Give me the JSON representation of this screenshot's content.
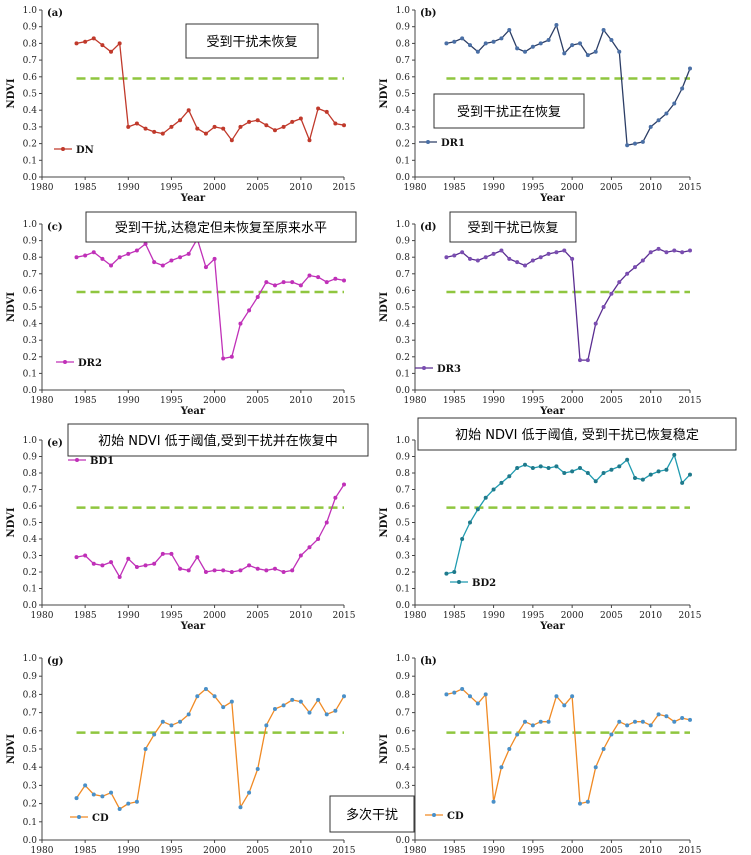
{
  "colors": {
    "threshold": "#8fc63f",
    "axis": "#333333",
    "annotation_border": "#333333"
  },
  "chart_data": [
    {
      "id": "a",
      "panel_label": "(a)",
      "type": "line",
      "xlabel": "Year",
      "ylabel": "NDVI",
      "xlim": [
        1980,
        2015
      ],
      "ylim": [
        0,
        1.0
      ],
      "xticks": [
        "1980",
        "1985",
        "1990",
        "1995",
        "2000",
        "2005",
        "2010",
        "2015"
      ],
      "yticks": [
        "0.0",
        "0.1",
        "0.2",
        "0.3",
        "0.4",
        "0.5",
        "0.6",
        "0.7",
        "0.8",
        "0.9",
        "1.0"
      ],
      "threshold": 0.59,
      "legend_position": "bottom-left",
      "series": [
        {
          "name": "DN",
          "color": "#c0392b",
          "marker_color": "#c0392b",
          "x": [
            1984,
            1985,
            1986,
            1987,
            1988,
            1989,
            1990,
            1991,
            1992,
            1993,
            1994,
            1995,
            1996,
            1997,
            1998,
            1999,
            2000,
            2001,
            2002,
            2003,
            2004,
            2005,
            2006,
            2007,
            2008,
            2009,
            2010,
            2011,
            2012,
            2013,
            2014,
            2015
          ],
          "y": [
            0.8,
            0.81,
            0.83,
            0.79,
            0.75,
            0.8,
            0.3,
            0.32,
            0.29,
            0.27,
            0.26,
            0.3,
            0.34,
            0.4,
            0.29,
            0.26,
            0.3,
            0.29,
            0.22,
            0.3,
            0.33,
            0.34,
            0.31,
            0.28,
            0.3,
            0.33,
            0.35,
            0.22,
            0.41,
            0.39,
            0.32,
            0.31
          ]
        }
      ],
      "annotation": {
        "text": "受到干扰未恢复",
        "position": "top-right"
      }
    },
    {
      "id": "b",
      "panel_label": "(b)",
      "type": "line",
      "xlabel": "Year",
      "ylabel": "NDVI",
      "xlim": [
        1980,
        2015
      ],
      "ylim": [
        0,
        1.0
      ],
      "xticks": [
        "1980",
        "1985",
        "1990",
        "1995",
        "2000",
        "2005",
        "2010",
        "2015"
      ],
      "yticks": [
        "0.0",
        "0.1",
        "0.2",
        "0.3",
        "0.4",
        "0.5",
        "0.6",
        "0.7",
        "0.8",
        "0.9",
        "1.0"
      ],
      "threshold": 0.59,
      "legend_position": "bottom-left",
      "series": [
        {
          "name": "DR1",
          "color": "#2c3e66",
          "marker_color": "#4a6fa5",
          "x": [
            1984,
            1985,
            1986,
            1987,
            1988,
            1989,
            1990,
            1991,
            1992,
            1993,
            1994,
            1995,
            1996,
            1997,
            1998,
            1999,
            2000,
            2001,
            2002,
            2003,
            2004,
            2005,
            2006,
            2007,
            2008,
            2009,
            2010,
            2011,
            2012,
            2013,
            2014,
            2015
          ],
          "y": [
            0.8,
            0.81,
            0.83,
            0.79,
            0.75,
            0.8,
            0.81,
            0.83,
            0.88,
            0.77,
            0.75,
            0.78,
            0.8,
            0.82,
            0.91,
            0.74,
            0.79,
            0.8,
            0.73,
            0.75,
            0.88,
            0.82,
            0.75,
            0.19,
            0.2,
            0.21,
            0.3,
            0.34,
            0.38,
            0.44,
            0.53,
            0.65
          ]
        }
      ],
      "annotation": {
        "text": "受到干扰正在恢复",
        "position": "middle"
      }
    },
    {
      "id": "c",
      "panel_label": "(c)",
      "type": "line",
      "xlabel": "Year",
      "ylabel": "NDVI",
      "xlim": [
        1980,
        2015
      ],
      "ylim": [
        0,
        1.0
      ],
      "xticks": [
        "1980",
        "1985",
        "1990",
        "1995",
        "2000",
        "2005",
        "2010",
        "2015"
      ],
      "yticks": [
        "0.0",
        "0.1",
        "0.2",
        "0.3",
        "0.4",
        "0.5",
        "0.6",
        "0.7",
        "0.8",
        "0.9",
        "1.0"
      ],
      "threshold": 0.59,
      "legend_position": "bottom-left",
      "series": [
        {
          "name": "DR2",
          "color": "#c030b8",
          "marker_color": "#c030b8",
          "x": [
            1984,
            1985,
            1986,
            1987,
            1988,
            1989,
            1990,
            1991,
            1992,
            1993,
            1994,
            1995,
            1996,
            1997,
            1998,
            1999,
            2000,
            2001,
            2002,
            2003,
            2004,
            2005,
            2006,
            2007,
            2008,
            2009,
            2010,
            2011,
            2012,
            2013,
            2014,
            2015
          ],
          "y": [
            0.8,
            0.81,
            0.83,
            0.79,
            0.75,
            0.8,
            0.82,
            0.84,
            0.88,
            0.77,
            0.75,
            0.78,
            0.8,
            0.82,
            0.91,
            0.74,
            0.79,
            0.19,
            0.2,
            0.4,
            0.48,
            0.56,
            0.65,
            0.63,
            0.65,
            0.65,
            0.63,
            0.69,
            0.68,
            0.65,
            0.67,
            0.66
          ]
        }
      ],
      "annotation": {
        "text": "受到干扰,达稳定但未恢复至原来水平",
        "position": "top"
      }
    },
    {
      "id": "d",
      "panel_label": "(d)",
      "type": "line",
      "xlabel": "Year",
      "ylabel": "NDVI",
      "xlim": [
        1980,
        2015
      ],
      "ylim": [
        0,
        1.0
      ],
      "xticks": [
        "1980",
        "1985",
        "1990",
        "1995",
        "2000",
        "2005",
        "2010",
        "2015"
      ],
      "yticks": [
        "0.0",
        "0.1",
        "0.2",
        "0.3",
        "0.4",
        "0.5",
        "0.6",
        "0.7",
        "0.8",
        "0.9",
        "1.0"
      ],
      "threshold": 0.59,
      "legend_position": "bottom-left",
      "series": [
        {
          "name": "DR3",
          "color": "#5a2d91",
          "marker_color": "#7a4db1",
          "x": [
            1984,
            1985,
            1986,
            1987,
            1988,
            1989,
            1990,
            1991,
            1992,
            1993,
            1994,
            1995,
            1996,
            1997,
            1998,
            1999,
            2000,
            2001,
            2002,
            2003,
            2004,
            2005,
            2006,
            2007,
            2008,
            2009,
            2010,
            2011,
            2012,
            2013,
            2014,
            2015
          ],
          "y": [
            0.8,
            0.81,
            0.83,
            0.79,
            0.78,
            0.8,
            0.82,
            0.84,
            0.79,
            0.77,
            0.75,
            0.78,
            0.8,
            0.82,
            0.83,
            0.84,
            0.79,
            0.18,
            0.18,
            0.4,
            0.5,
            0.58,
            0.65,
            0.7,
            0.74,
            0.78,
            0.83,
            0.85,
            0.83,
            0.84,
            0.83,
            0.84
          ]
        }
      ],
      "annotation": {
        "text": "受到干扰已恢复",
        "position": "top"
      }
    },
    {
      "id": "e",
      "panel_label": "(e)",
      "type": "line",
      "xlabel": "Year",
      "ylabel": "NDVI",
      "xlim": [
        1980,
        2015
      ],
      "ylim": [
        0,
        1.0
      ],
      "xticks": [
        "1980",
        "1985",
        "1990",
        "1995",
        "2000",
        "2005",
        "2010",
        "2015"
      ],
      "yticks": [
        "0.0",
        "0.1",
        "0.2",
        "0.3",
        "0.4",
        "0.5",
        "0.6",
        "0.7",
        "0.8",
        "0.9",
        "1.0"
      ],
      "threshold": 0.59,
      "legend_position": "top-left",
      "series": [
        {
          "name": "BD1",
          "color": "#c030b8",
          "marker_color": "#c030b8",
          "x": [
            1984,
            1985,
            1986,
            1987,
            1988,
            1989,
            1990,
            1991,
            1992,
            1993,
            1994,
            1995,
            1996,
            1997,
            1998,
            1999,
            2000,
            2001,
            2002,
            2003,
            2004,
            2005,
            2006,
            2007,
            2008,
            2009,
            2010,
            2011,
            2012,
            2013,
            2014,
            2015
          ],
          "y": [
            0.29,
            0.3,
            0.25,
            0.24,
            0.26,
            0.17,
            0.28,
            0.23,
            0.24,
            0.25,
            0.31,
            0.31,
            0.22,
            0.21,
            0.29,
            0.2,
            0.21,
            0.21,
            0.2,
            0.21,
            0.24,
            0.22,
            0.21,
            0.22,
            0.2,
            0.21,
            0.3,
            0.35,
            0.4,
            0.5,
            0.65,
            0.73
          ]
        }
      ],
      "annotation": {
        "text": "初始 NDVI 低于阈值,受到干扰并在恢复中",
        "position": "top"
      }
    },
    {
      "id": "f",
      "panel_label": "(f)",
      "type": "line",
      "xlabel": "Year",
      "ylabel": "NDVI",
      "xlim": [
        1980,
        2015
      ],
      "ylim": [
        0,
        1.0
      ],
      "xticks": [
        "1980",
        "1985",
        "1990",
        "1995",
        "2000",
        "2005",
        "2010",
        "2015"
      ],
      "yticks": [
        "0.0",
        "0.1",
        "0.2",
        "0.3",
        "0.4",
        "0.5",
        "0.6",
        "0.7",
        "0.8",
        "0.9",
        "1.0"
      ],
      "threshold": 0.59,
      "legend_position": "bottom-left",
      "series": [
        {
          "name": "BD2",
          "color": "#1f9bb0",
          "marker_color": "#1f7a8c",
          "x": [
            1984,
            1985,
            1986,
            1987,
            1988,
            1989,
            1990,
            1991,
            1992,
            1993,
            1994,
            1995,
            1996,
            1997,
            1998,
            1999,
            2000,
            2001,
            2002,
            2003,
            2004,
            2005,
            2006,
            2007,
            2008,
            2009,
            2010,
            2011,
            2012,
            2013,
            2014,
            2015
          ],
          "y": [
            0.19,
            0.2,
            0.4,
            0.5,
            0.58,
            0.65,
            0.7,
            0.74,
            0.78,
            0.83,
            0.85,
            0.83,
            0.84,
            0.83,
            0.84,
            0.8,
            0.81,
            0.83,
            0.8,
            0.75,
            0.8,
            0.82,
            0.84,
            0.88,
            0.77,
            0.76,
            0.79,
            0.81,
            0.82,
            0.91,
            0.74,
            0.79
          ]
        }
      ],
      "annotation": {
        "text": "初始 NDVI 低于阈值, 受到干扰已恢复稳定",
        "position": "top"
      }
    },
    {
      "id": "g",
      "panel_label": "(g)",
      "type": "line",
      "xlabel": "",
      "ylabel": "NDVI",
      "xlim": [
        1980,
        2015
      ],
      "ylim": [
        0,
        1.0
      ],
      "xticks": [
        "1980",
        "1985",
        "1990",
        "1995",
        "2000",
        "2005",
        "2010",
        "2015"
      ],
      "yticks": [
        "0.0",
        "0.1",
        "0.2",
        "0.3",
        "0.4",
        "0.5",
        "0.6",
        "0.7",
        "0.8",
        "0.9",
        "1.0"
      ],
      "threshold": 0.59,
      "legend_position": "bottom-left",
      "series": [
        {
          "name": "CD",
          "color": "#f08a24",
          "marker_color": "#4a90c8",
          "x": [
            1984,
            1985,
            1986,
            1987,
            1988,
            1989,
            1990,
            1991,
            1992,
            1993,
            1994,
            1995,
            1996,
            1997,
            1998,
            1999,
            2000,
            2001,
            2002,
            2003,
            2004,
            2005,
            2006,
            2007,
            2008,
            2009,
            2010,
            2011,
            2012,
            2013,
            2014,
            2015
          ],
          "y": [
            0.23,
            0.3,
            0.25,
            0.24,
            0.26,
            0.17,
            0.2,
            0.21,
            0.5,
            0.58,
            0.65,
            0.63,
            0.65,
            0.69,
            0.79,
            0.83,
            0.79,
            0.73,
            0.76,
            0.18,
            0.26,
            0.39,
            0.63,
            0.72,
            0.74,
            0.77,
            0.76,
            0.7,
            0.77,
            0.69,
            0.71,
            0.79
          ]
        }
      ]
    },
    {
      "id": "h",
      "panel_label": "(h)",
      "type": "line",
      "xlabel": "",
      "ylabel": "NDVI",
      "xlim": [
        1980,
        2015
      ],
      "ylim": [
        0,
        1.0
      ],
      "xticks": [
        "1980",
        "1985",
        "1990",
        "1995",
        "2000",
        "2005",
        "2010",
        "2015"
      ],
      "yticks": [
        "0.0",
        "0.1",
        "0.2",
        "0.3",
        "0.4",
        "0.5",
        "0.6",
        "0.7",
        "0.8",
        "0.9",
        "1.0"
      ],
      "threshold": 0.59,
      "legend_position": "bottom-left",
      "series": [
        {
          "name": "CD",
          "color": "#f08a24",
          "marker_color": "#4a90c8",
          "x": [
            1984,
            1985,
            1986,
            1987,
            1988,
            1989,
            1990,
            1991,
            1992,
            1993,
            1994,
            1995,
            1996,
            1997,
            1998,
            1999,
            2000,
            2001,
            2002,
            2003,
            2004,
            2005,
            2006,
            2007,
            2008,
            2009,
            2010,
            2011,
            2012,
            2013,
            2014,
            2015
          ],
          "y": [
            0.8,
            0.81,
            0.83,
            0.79,
            0.75,
            0.8,
            0.21,
            0.4,
            0.5,
            0.58,
            0.65,
            0.63,
            0.65,
            0.65,
            0.79,
            0.74,
            0.79,
            0.2,
            0.21,
            0.4,
            0.5,
            0.58,
            0.65,
            0.63,
            0.65,
            0.65,
            0.63,
            0.69,
            0.68,
            0.65,
            0.67,
            0.66
          ]
        }
      ],
      "annotation": {
        "text": "多次干扰",
        "position": "bottom-left"
      }
    }
  ]
}
